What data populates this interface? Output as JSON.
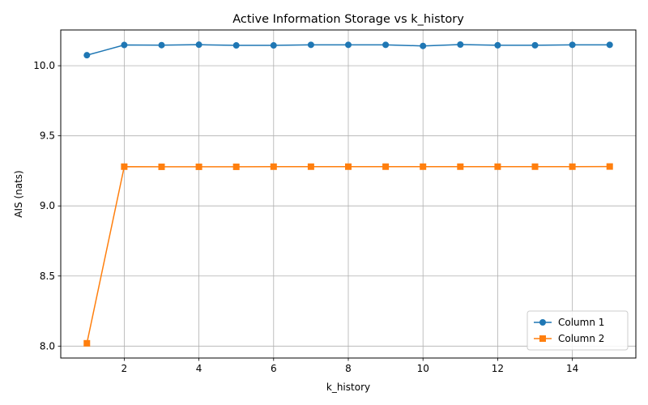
{
  "chart_data": {
    "type": "line",
    "title": "Active Information Storage vs k_history",
    "xlabel": "k_history",
    "ylabel": "AIS (nats)",
    "xlim": [
      0.3,
      15.7
    ],
    "ylim": [
      7.915,
      10.255
    ],
    "xticks": [
      2,
      4,
      6,
      8,
      10,
      12,
      14
    ],
    "yticks": [
      8.0,
      8.5,
      9.0,
      9.5,
      10.0
    ],
    "ytick_labels": [
      "8.0",
      "8.5",
      "9.0",
      "9.5",
      "10.0"
    ],
    "grid": true,
    "legend_position": "lower-right",
    "x": [
      1,
      2,
      3,
      4,
      5,
      6,
      7,
      8,
      9,
      10,
      11,
      12,
      13,
      14,
      15
    ],
    "series": [
      {
        "name": "Column 1",
        "color": "#1f77b4",
        "marker": "circle",
        "values": [
          10.075,
          10.148,
          10.147,
          10.15,
          10.145,
          10.145,
          10.149,
          10.149,
          10.149,
          10.141,
          10.151,
          10.146,
          10.146,
          10.149,
          10.149
        ]
      },
      {
        "name": "Column 2",
        "color": "#ff7f0e",
        "marker": "square",
        "values": [
          8.02,
          9.28,
          9.279,
          9.279,
          9.279,
          9.28,
          9.28,
          9.28,
          9.28,
          9.28,
          9.28,
          9.28,
          9.28,
          9.28,
          9.281
        ]
      }
    ]
  }
}
